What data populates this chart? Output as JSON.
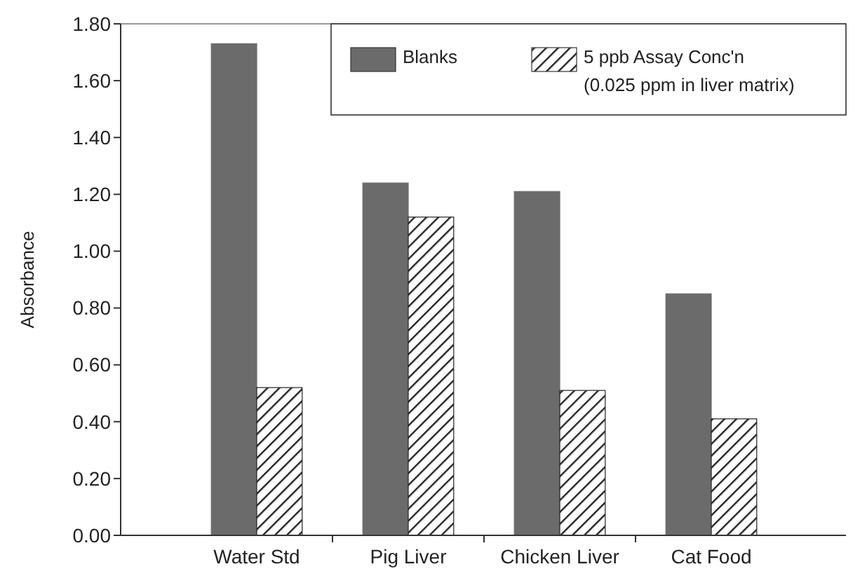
{
  "chart_data": {
    "type": "bar",
    "ylabel": "Absorbance",
    "categories": [
      "Water Std",
      "Pig Liver",
      "Chicken Liver",
      "Cat Food"
    ],
    "series": [
      {
        "name": "Blanks",
        "color": "#6b6b6b",
        "values": [
          1.73,
          1.24,
          1.21,
          0.85
        ]
      },
      {
        "name": "5 ppb  Assay Conc'n (0.025 ppm in liver matrix)",
        "color": "#222222",
        "values": [
          0.52,
          1.12,
          0.51,
          0.41
        ]
      }
    ],
    "ylim": [
      0,
      1.8
    ],
    "yticks": [
      {
        "value": 0,
        "label": "0.00"
      },
      {
        "value": 0.2,
        "label": "0.20"
      },
      {
        "value": 0.4,
        "label": "0.40"
      },
      {
        "value": 0.6,
        "label": "0.60"
      },
      {
        "value": 0.8,
        "label": "0.80"
      },
      {
        "value": 1,
        "label": "1.00"
      },
      {
        "value": 1.2,
        "label": "1.20"
      },
      {
        "value": 1.4,
        "label": "1.40"
      },
      {
        "value": 1.6,
        "label": "1.60"
      },
      {
        "value": 1.8,
        "label": "1.80"
      }
    ],
    "grid": false,
    "legend": "top right"
  }
}
